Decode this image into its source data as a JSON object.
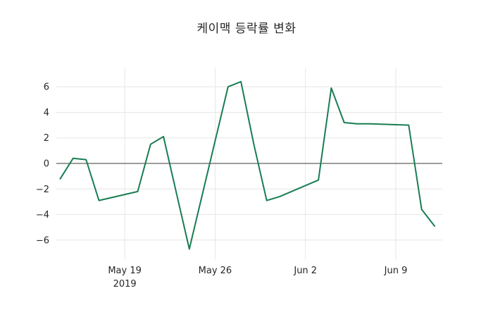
{
  "chart_data": {
    "type": "line",
    "title": "케이맥 등락률 변화",
    "xlabel": "",
    "ylabel": "",
    "series": [
      {
        "name": "케이맥 등락률",
        "color": "#197d52",
        "x": [
          "2019-05-14",
          "2019-05-15",
          "2019-05-16",
          "2019-05-17",
          "2019-05-20",
          "2019-05-21",
          "2019-05-22",
          "2019-05-23",
          "2019-05-24",
          "2019-05-27",
          "2019-05-28",
          "2019-05-29",
          "2019-05-30",
          "2019-05-31",
          "2019-06-03",
          "2019-06-04",
          "2019-06-05",
          "2019-06-06",
          "2019-06-07",
          "2019-06-10",
          "2019-06-11",
          "2019-06-12"
        ],
        "values": [
          -1.2,
          0.4,
          0.3,
          -2.9,
          -2.2,
          1.5,
          2.1,
          -2.3,
          -6.7,
          6.0,
          6.4,
          1.5,
          -2.9,
          -2.6,
          -1.3,
          5.9,
          3.2,
          3.1,
          3.1,
          3.0,
          -3.6,
          -4.9
        ]
      }
    ],
    "ylim": [
      -7.5,
      7.5
    ],
    "yticks": [
      -6,
      -4,
      -2,
      0,
      2,
      4,
      6
    ],
    "ytick_labels": [
      "−6",
      "−4",
      "−2",
      "0",
      "2",
      "4",
      "6"
    ],
    "xticks": [
      "2019-05-19",
      "2019-05-26",
      "2019-06-02",
      "2019-06-09"
    ],
    "xtick_labels": [
      [
        "May 19",
        "2019"
      ],
      [
        "May 26",
        ""
      ],
      [
        "Jun 2",
        ""
      ],
      [
        "Jun 9",
        ""
      ]
    ],
    "grid": true,
    "zero_line": true,
    "legend_position": "none",
    "colors": {
      "background": "#ffffff",
      "grid": "#e6e6e6",
      "zero_line": "#3a3a3a",
      "tick_label": "#262626",
      "title": "#262626"
    }
  }
}
